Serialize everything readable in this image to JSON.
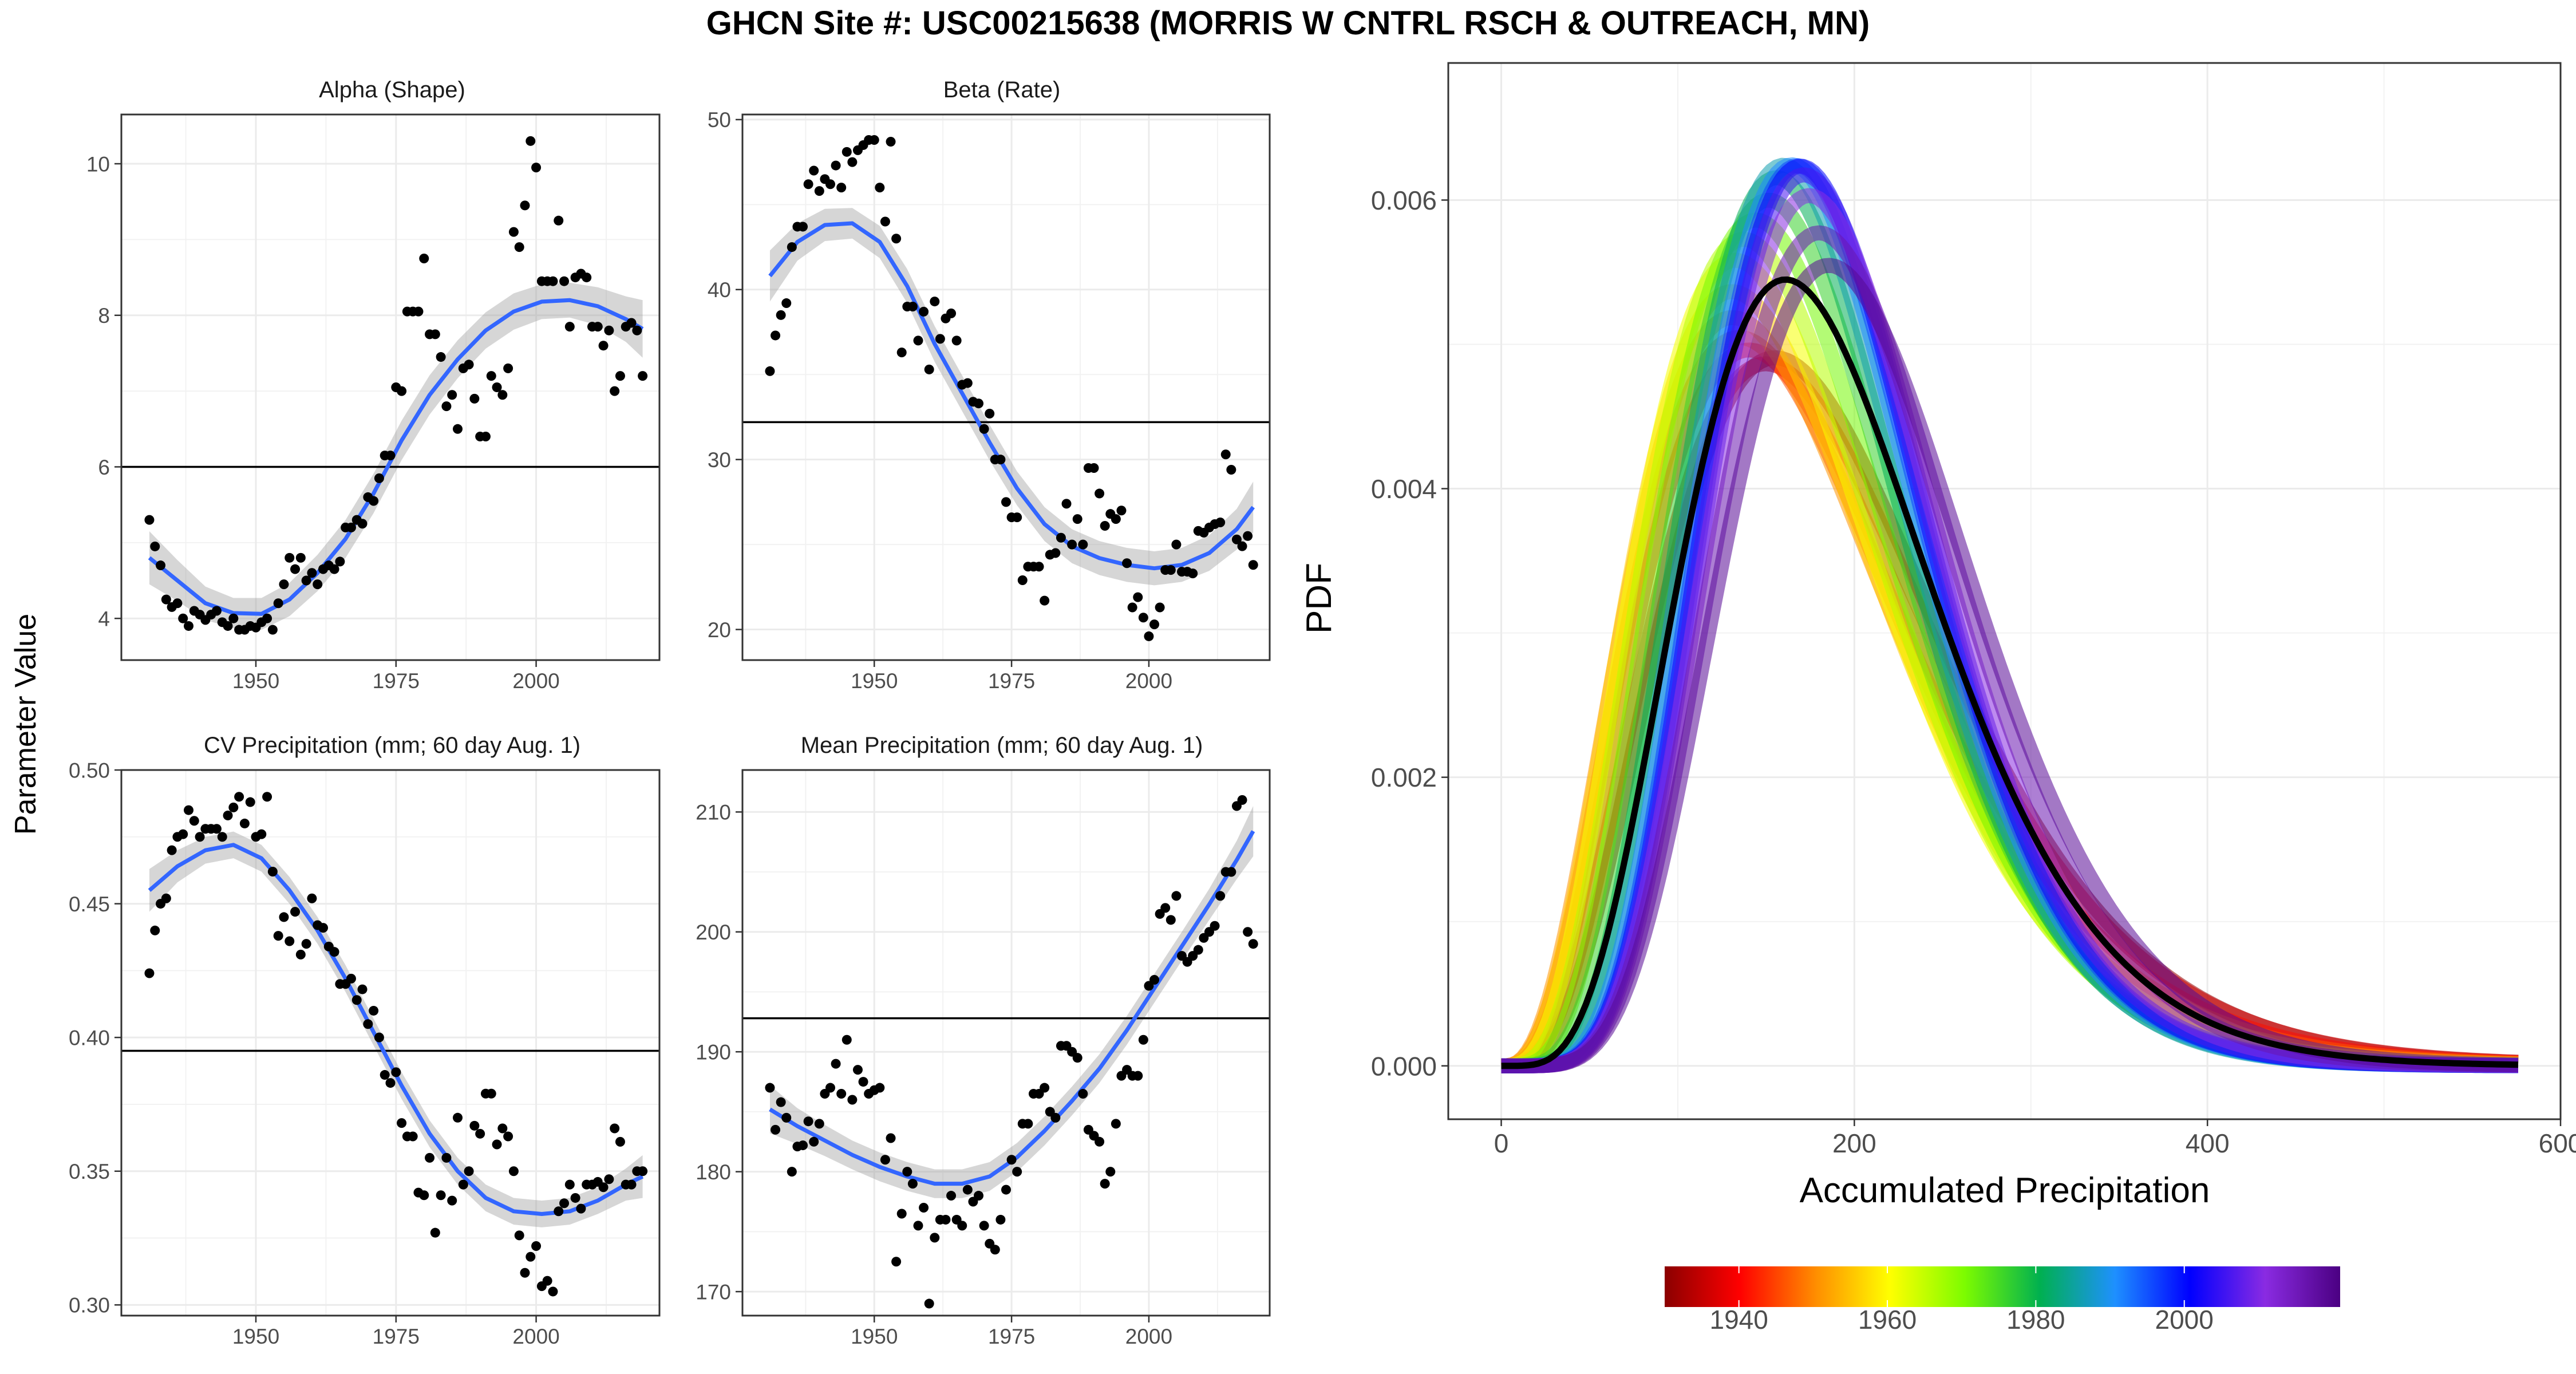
{
  "figure": {
    "title": "GHCN Site #: USC00215638 (MORRIS W CNTRL RSCH & OUTREACH, MN)",
    "left_ylabel": "Parameter Value"
  },
  "colorbar": {
    "ticks": [
      "1940",
      "1960",
      "1980",
      "2000"
    ],
    "tick_years": [
      1940,
      1960,
      1980,
      2000
    ],
    "year_range": [
      1930,
      2021
    ],
    "colors": [
      "#8b0000",
      "#ff0000",
      "#ff8c00",
      "#ffff00",
      "#7cfc00",
      "#00b050",
      "#1e90ff",
      "#0000ff",
      "#8a2be2",
      "#4b0082"
    ]
  },
  "chart_data": [
    {
      "id": "alpha",
      "type": "scatter",
      "title": "Alpha (Shape)",
      "xlim": [
        1926,
        2022
      ],
      "ylim": [
        3.45,
        10.65
      ],
      "xticks": [
        1950,
        1975,
        2000
      ],
      "yticks": [
        4,
        6,
        8,
        10
      ],
      "hline": 6.0,
      "x": [
        1931,
        1932,
        1933,
        1934,
        1935,
        1936,
        1937,
        1938,
        1939,
        1940,
        1941,
        1942,
        1943,
        1944,
        1945,
        1946,
        1947,
        1948,
        1949,
        1950,
        1951,
        1952,
        1953,
        1954,
        1955,
        1956,
        1957,
        1958,
        1959,
        1960,
        1961,
        1962,
        1963,
        1964,
        1965,
        1966,
        1967,
        1968,
        1969,
        1970,
        1971,
        1972,
        1973,
        1974,
        1975,
        1976,
        1977,
        1978,
        1979,
        1980,
        1981,
        1982,
        1983,
        1984,
        1985,
        1986,
        1987,
        1988,
        1989,
        1990,
        1991,
        1992,
        1993,
        1994,
        1995,
        1996,
        1997,
        1998,
        1999,
        2000,
        2001,
        2002,
        2003,
        2004,
        2005,
        2006,
        2007,
        2008,
        2009,
        2010,
        2011,
        2012,
        2013,
        2014,
        2015,
        2016,
        2017,
        2018,
        2019
      ],
      "y": [
        5.3,
        4.95,
        4.7,
        4.25,
        4.15,
        4.2,
        4.0,
        3.9,
        4.1,
        4.05,
        3.98,
        4.05,
        4.1,
        3.95,
        3.9,
        4.0,
        3.85,
        3.85,
        3.9,
        3.88,
        3.95,
        4.0,
        3.85,
        4.2,
        4.45,
        4.8,
        4.65,
        4.8,
        4.5,
        4.6,
        4.45,
        4.65,
        4.7,
        4.65,
        4.75,
        5.2,
        5.2,
        5.3,
        5.25,
        5.6,
        5.55,
        5.85,
        6.15,
        6.15,
        7.05,
        7.0,
        8.05,
        8.05,
        8.05,
        8.75,
        7.75,
        7.75,
        7.45,
        6.8,
        6.95,
        6.5,
        7.3,
        7.35,
        6.9,
        6.4,
        6.4,
        7.2,
        7.05,
        6.95,
        7.3,
        9.1,
        8.9,
        9.45,
        10.3,
        9.95,
        8.45,
        8.45,
        8.45,
        9.25,
        8.45,
        7.85,
        8.5,
        8.55,
        8.5,
        7.85,
        7.85,
        7.6,
        7.8,
        7.0,
        7.2,
        7.85,
        7.9,
        7.8,
        7.2
      ],
      "smooth_x": [
        1931,
        1936,
        1941,
        1946,
        1951,
        1956,
        1961,
        1966,
        1971,
        1976,
        1981,
        1986,
        1991,
        1996,
        2001,
        2006,
        2011,
        2016,
        2019
      ],
      "smooth_y": [
        4.8,
        4.5,
        4.2,
        4.07,
        4.06,
        4.25,
        4.6,
        5.05,
        5.65,
        6.35,
        6.95,
        7.42,
        7.8,
        8.05,
        8.18,
        8.2,
        8.12,
        7.95,
        7.82
      ],
      "smooth_se": [
        0.35,
        0.27,
        0.22,
        0.2,
        0.21,
        0.22,
        0.24,
        0.25,
        0.26,
        0.26,
        0.26,
        0.25,
        0.24,
        0.24,
        0.23,
        0.23,
        0.25,
        0.3,
        0.38
      ]
    },
    {
      "id": "beta",
      "type": "scatter",
      "title": "Beta (Rate)",
      "xlim": [
        1926,
        2022
      ],
      "ylim": [
        18.2,
        50.3
      ],
      "xticks": [
        1950,
        1975,
        2000
      ],
      "yticks": [
        20,
        30,
        40,
        50
      ],
      "hline": 32.2,
      "x": [
        1931,
        1932,
        1933,
        1934,
        1935,
        1936,
        1937,
        1938,
        1939,
        1940,
        1941,
        1942,
        1943,
        1944,
        1945,
        1946,
        1947,
        1948,
        1949,
        1950,
        1951,
        1952,
        1953,
        1954,
        1955,
        1956,
        1957,
        1958,
        1959,
        1960,
        1961,
        1962,
        1963,
        1964,
        1965,
        1966,
        1967,
        1968,
        1969,
        1970,
        1971,
        1972,
        1973,
        1974,
        1975,
        1976,
        1977,
        1978,
        1979,
        1980,
        1981,
        1982,
        1983,
        1984,
        1985,
        1986,
        1987,
        1988,
        1989,
        1990,
        1991,
        1992,
        1993,
        1994,
        1995,
        1996,
        1997,
        1998,
        1999,
        2000,
        2001,
        2002,
        2003,
        2004,
        2005,
        2006,
        2007,
        2008,
        2009,
        2010,
        2011,
        2012,
        2013,
        2014,
        2015,
        2016,
        2017,
        2018,
        2019
      ],
      "y": [
        35.2,
        37.3,
        38.5,
        39.2,
        42.5,
        43.7,
        43.7,
        46.2,
        47.0,
        45.8,
        46.5,
        46.2,
        47.3,
        46.0,
        48.1,
        47.5,
        48.2,
        48.5,
        48.8,
        48.8,
        46.0,
        44.0,
        48.7,
        43.0,
        36.3,
        39.0,
        39.0,
        37.0,
        38.7,
        35.3,
        39.3,
        37.1,
        38.3,
        38.6,
        37.0,
        34.4,
        34.5,
        33.4,
        33.3,
        31.8,
        32.7,
        30.0,
        30.0,
        27.5,
        26.6,
        26.6,
        22.9,
        23.7,
        23.7,
        23.7,
        21.7,
        24.4,
        24.5,
        25.4,
        27.4,
        25.0,
        26.5,
        25.0,
        29.5,
        29.5,
        28.0,
        26.1,
        26.8,
        26.5,
        27.0,
        23.9,
        21.3,
        21.9,
        20.7,
        19.6,
        20.3,
        21.3,
        23.5,
        23.5,
        25.0,
        23.4,
        23.4,
        23.3,
        25.8,
        25.7,
        26.0,
        26.2,
        26.3,
        30.3,
        29.4,
        25.3,
        24.9,
        25.5,
        23.8
      ],
      "smooth_x": [
        1931,
        1936,
        1941,
        1946,
        1951,
        1956,
        1961,
        1966,
        1971,
        1976,
        1981,
        1986,
        1991,
        1996,
        2001,
        2006,
        2011,
        2016,
        2019
      ],
      "smooth_y": [
        40.8,
        42.8,
        43.8,
        43.9,
        42.8,
        40.2,
        36.8,
        33.9,
        31.0,
        28.3,
        26.2,
        24.9,
        24.2,
        23.8,
        23.6,
        23.8,
        24.5,
        25.9,
        27.2
      ],
      "smooth_se": [
        1.5,
        1.1,
        0.95,
        0.9,
        0.95,
        1.0,
        1.05,
        1.05,
        1.05,
        1.0,
        1.0,
        1.0,
        1.0,
        1.0,
        1.0,
        1.0,
        1.05,
        1.2,
        1.5
      ]
    },
    {
      "id": "cv",
      "type": "scatter",
      "title": "CV Precipitation (mm; 60 day Aug. 1)",
      "xlim": [
        1926,
        2022
      ],
      "ylim": [
        0.296,
        0.5
      ],
      "xticks": [
        1950,
        1975,
        2000
      ],
      "yticks": [
        0.3,
        0.35,
        0.4,
        0.45,
        0.5
      ],
      "ytick_labels": [
        "0.30",
        "0.35",
        "0.40",
        "0.45",
        "0.50"
      ],
      "hline": 0.395,
      "x": [
        1931,
        1932,
        1933,
        1934,
        1935,
        1936,
        1937,
        1938,
        1939,
        1940,
        1941,
        1942,
        1943,
        1944,
        1945,
        1946,
        1947,
        1948,
        1949,
        1950,
        1951,
        1952,
        1953,
        1954,
        1955,
        1956,
        1957,
        1958,
        1959,
        1960,
        1961,
        1962,
        1963,
        1964,
        1965,
        1966,
        1967,
        1968,
        1969,
        1970,
        1971,
        1972,
        1973,
        1974,
        1975,
        1976,
        1977,
        1978,
        1979,
        1980,
        1981,
        1982,
        1983,
        1984,
        1985,
        1986,
        1987,
        1988,
        1989,
        1990,
        1991,
        1992,
        1993,
        1994,
        1995,
        1996,
        1997,
        1998,
        1999,
        2000,
        2001,
        2002,
        2003,
        2004,
        2005,
        2006,
        2007,
        2008,
        2009,
        2010,
        2011,
        2012,
        2013,
        2014,
        2015,
        2016,
        2017,
        2018,
        2019
      ],
      "y": [
        0.424,
        0.44,
        0.45,
        0.452,
        0.47,
        0.475,
        0.476,
        0.485,
        0.481,
        0.475,
        0.478,
        0.478,
        0.478,
        0.475,
        0.483,
        0.486,
        0.49,
        0.48,
        0.488,
        0.475,
        0.476,
        0.49,
        0.462,
        0.438,
        0.445,
        0.436,
        0.447,
        0.431,
        0.435,
        0.452,
        0.442,
        0.441,
        0.434,
        0.432,
        0.42,
        0.42,
        0.422,
        0.414,
        0.418,
        0.405,
        0.41,
        0.4,
        0.386,
        0.383,
        0.387,
        0.368,
        0.363,
        0.363,
        0.342,
        0.341,
        0.355,
        0.327,
        0.341,
        0.355,
        0.339,
        0.37,
        0.345,
        0.35,
        0.367,
        0.364,
        0.379,
        0.379,
        0.36,
        0.366,
        0.363,
        0.35,
        0.326,
        0.312,
        0.318,
        0.322,
        0.307,
        0.309,
        0.305,
        0.335,
        0.338,
        0.345,
        0.34,
        0.336,
        0.345,
        0.345,
        0.346,
        0.344,
        0.347,
        0.366,
        0.361,
        0.345,
        0.345,
        0.35,
        0.35
      ],
      "smooth_x": [
        1931,
        1936,
        1941,
        1946,
        1951,
        1956,
        1961,
        1966,
        1971,
        1976,
        1981,
        1986,
        1991,
        1996,
        2001,
        2006,
        2011,
        2016,
        2019
      ],
      "smooth_y": [
        0.455,
        0.464,
        0.47,
        0.472,
        0.467,
        0.455,
        0.44,
        0.422,
        0.402,
        0.382,
        0.364,
        0.35,
        0.34,
        0.335,
        0.334,
        0.335,
        0.339,
        0.345,
        0.348
      ],
      "smooth_se": [
        0.008,
        0.006,
        0.005,
        0.005,
        0.005,
        0.005,
        0.005,
        0.005,
        0.005,
        0.005,
        0.005,
        0.005,
        0.005,
        0.005,
        0.005,
        0.005,
        0.005,
        0.006,
        0.008
      ]
    },
    {
      "id": "mean",
      "type": "scatter",
      "title": "Mean Precipitation (mm; 60 day Aug. 1)",
      "xlim": [
        1926,
        2022
      ],
      "ylim": [
        168.0,
        213.5
      ],
      "xticks": [
        1950,
        1975,
        2000
      ],
      "yticks": [
        170,
        180,
        190,
        200,
        210
      ],
      "hline": 192.8,
      "x": [
        1931,
        1932,
        1933,
        1934,
        1935,
        1936,
        1937,
        1938,
        1939,
        1940,
        1941,
        1942,
        1943,
        1944,
        1945,
        1946,
        1947,
        1948,
        1949,
        1950,
        1951,
        1952,
        1953,
        1954,
        1955,
        1956,
        1957,
        1958,
        1959,
        1960,
        1961,
        1962,
        1963,
        1964,
        1965,
        1966,
        1967,
        1968,
        1969,
        1970,
        1971,
        1972,
        1973,
        1974,
        1975,
        1976,
        1977,
        1978,
        1979,
        1980,
        1981,
        1982,
        1983,
        1984,
        1985,
        1986,
        1987,
        1988,
        1989,
        1990,
        1991,
        1992,
        1993,
        1994,
        1995,
        1996,
        1997,
        1998,
        1999,
        2000,
        2001,
        2002,
        2003,
        2004,
        2005,
        2006,
        2007,
        2008,
        2009,
        2010,
        2011,
        2012,
        2013,
        2014,
        2015,
        2016,
        2017,
        2018,
        2019
      ],
      "y": [
        187.0,
        183.5,
        185.8,
        184.5,
        180.0,
        182.1,
        182.2,
        184.2,
        182.5,
        184.0,
        186.5,
        187.0,
        189.0,
        186.5,
        191.0,
        186.0,
        188.5,
        187.5,
        186.5,
        186.8,
        187.0,
        181.0,
        182.8,
        172.5,
        176.5,
        180.0,
        179.0,
        175.5,
        177.0,
        169.0,
        174.5,
        176.0,
        176.0,
        178.0,
        176.0,
        175.5,
        178.5,
        177.5,
        178.0,
        175.5,
        174.0,
        173.5,
        176.0,
        178.5,
        181.0,
        180.0,
        184.0,
        184.0,
        186.5,
        186.5,
        187.0,
        185.0,
        184.5,
        190.5,
        190.5,
        190.0,
        189.5,
        186.5,
        183.5,
        183.0,
        182.5,
        179.0,
        180.0,
        184.0,
        188.0,
        188.5,
        188.0,
        188.0,
        191.0,
        195.5,
        196.0,
        201.5,
        202.0,
        201.0,
        203.0,
        198.0,
        197.5,
        198.0,
        198.5,
        199.5,
        200.0,
        200.5,
        203.0,
        205.0,
        205.0,
        210.5,
        211.0,
        200.0,
        199.0
      ],
      "smooth_x": [
        1931,
        1936,
        1941,
        1946,
        1951,
        1956,
        1961,
        1966,
        1971,
        1976,
        1981,
        1986,
        1991,
        1996,
        2001,
        2006,
        2011,
        2016,
        2019
      ],
      "smooth_y": [
        185.2,
        183.8,
        182.6,
        181.4,
        180.4,
        179.6,
        179.0,
        179.0,
        179.6,
        181.2,
        183.4,
        185.9,
        188.6,
        191.8,
        195.3,
        198.8,
        202.3,
        206.0,
        208.4
      ],
      "smooth_se": [
        2.0,
        1.5,
        1.3,
        1.2,
        1.2,
        1.2,
        1.2,
        1.2,
        1.2,
        1.2,
        1.2,
        1.2,
        1.2,
        1.2,
        1.2,
        1.2,
        1.3,
        1.6,
        2.1
      ]
    },
    {
      "id": "pdf",
      "type": "line",
      "xlabel": "Accumulated Precipitation",
      "ylabel": "PDF",
      "xlim": [
        -30,
        600
      ],
      "ylim": [
        -0.00037,
        0.00695
      ],
      "xticks": [
        0,
        200,
        400,
        600
      ],
      "yticks": [
        0.0,
        0.002,
        0.004,
        0.006
      ],
      "ytick_labels": [
        "0.000",
        "0.002",
        "0.004",
        "0.006"
      ],
      "x_max": 577,
      "mean_curve": {
        "alpha": 6.0,
        "beta": 32.2,
        "color": "#000000"
      },
      "year_curves": [
        {
          "year": 1931,
          "alpha": 4.8,
          "beta": 40.8
        },
        {
          "year": 1936,
          "alpha": 4.5,
          "beta": 42.8
        },
        {
          "year": 1941,
          "alpha": 4.2,
          "beta": 43.8
        },
        {
          "year": 1946,
          "alpha": 4.07,
          "beta": 43.9
        },
        {
          "year": 1951,
          "alpha": 4.06,
          "beta": 42.8
        },
        {
          "year": 1956,
          "alpha": 4.25,
          "beta": 40.2
        },
        {
          "year": 1961,
          "alpha": 4.6,
          "beta": 36.8
        },
        {
          "year": 1966,
          "alpha": 5.05,
          "beta": 33.9
        },
        {
          "year": 1971,
          "alpha": 5.65,
          "beta": 31.0
        },
        {
          "year": 1976,
          "alpha": 6.35,
          "beta": 28.3
        },
        {
          "year": 1981,
          "alpha": 6.95,
          "beta": 26.2
        },
        {
          "year": 1986,
          "alpha": 7.42,
          "beta": 24.9
        },
        {
          "year": 1991,
          "alpha": 7.8,
          "beta": 24.2
        },
        {
          "year": 1996,
          "alpha": 8.05,
          "beta": 23.8
        },
        {
          "year": 2001,
          "alpha": 8.18,
          "beta": 23.6
        },
        {
          "year": 2006,
          "alpha": 8.2,
          "beta": 23.8
        },
        {
          "year": 2011,
          "alpha": 8.12,
          "beta": 24.5
        },
        {
          "year": 2016,
          "alpha": 7.95,
          "beta": 25.9
        },
        {
          "year": 2019,
          "alpha": 7.82,
          "beta": 27.2
        }
      ]
    }
  ]
}
